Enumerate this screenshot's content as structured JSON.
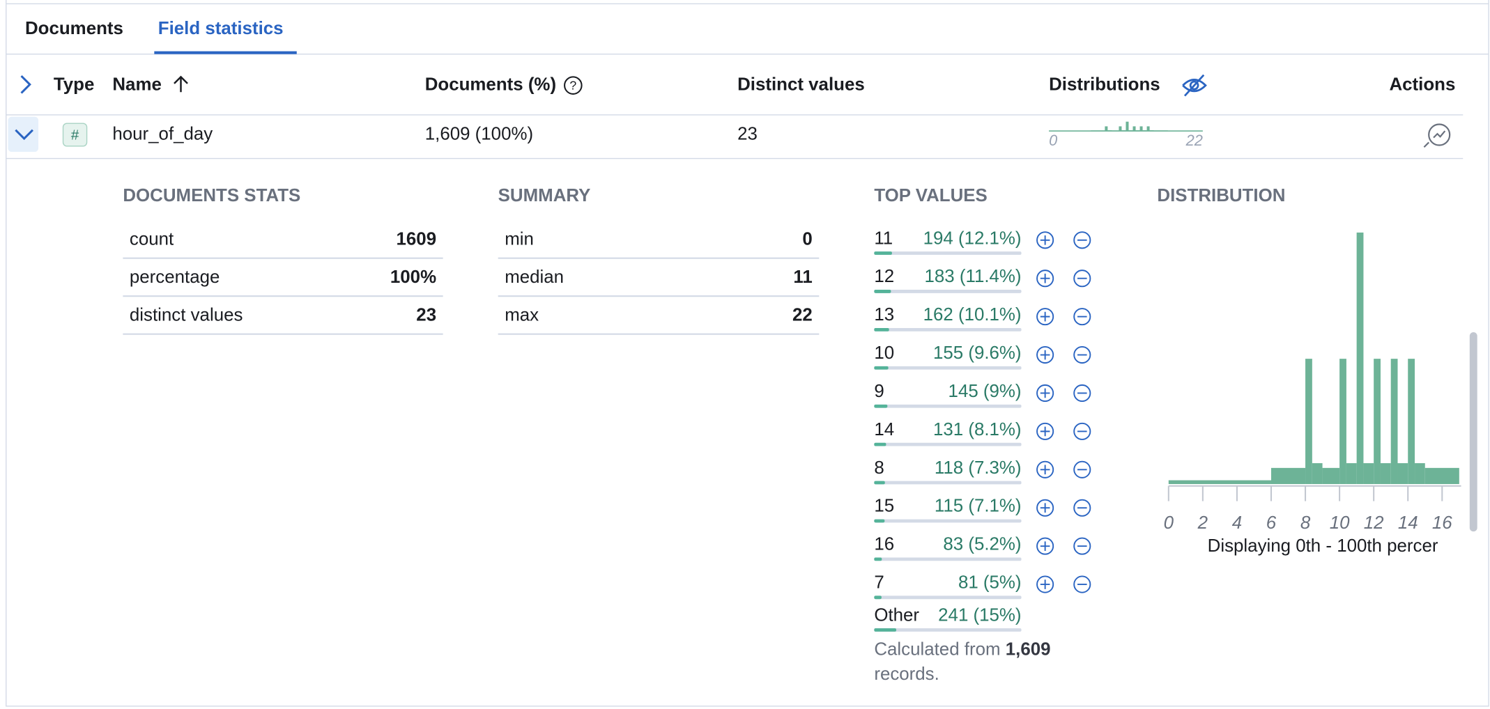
{
  "tabs": [
    "Documents",
    "Field statistics"
  ],
  "table": {
    "headers": [
      "Type",
      "Name",
      "Documents (%)",
      "Distinct values",
      "Distributions",
      "Actions"
    ],
    "row": {
      "type_icon": "#",
      "name": "hour_of_day",
      "documents": "1,609 (100%)",
      "distinct_values": "23",
      "dist_min": "0",
      "dist_max": "22"
    }
  },
  "documents_stats": {
    "title": "DOCUMENTS STATS",
    "rows": [
      [
        "count",
        "1609"
      ],
      [
        "percentage",
        "100%"
      ],
      [
        "distinct values",
        "23"
      ]
    ]
  },
  "summary": {
    "title": "SUMMARY",
    "rows": [
      [
        "min",
        "0"
      ],
      [
        "median",
        "11"
      ],
      [
        "max",
        "22"
      ]
    ]
  },
  "top_values": {
    "title": "TOP VALUES",
    "rows": [
      {
        "value": "11",
        "count": "194 (12.1%)",
        "percent": 12.1
      },
      {
        "value": "12",
        "count": "183 (11.4%)",
        "percent": 11.4
      },
      {
        "value": "13",
        "count": "162 (10.1%)",
        "percent": 10.1
      },
      {
        "value": "10",
        "count": "155 (9.6%)",
        "percent": 9.6
      },
      {
        "value": "9",
        "count": "145 (9%)",
        "percent": 9
      },
      {
        "value": "14",
        "count": "131 (8.1%)",
        "percent": 8.1
      },
      {
        "value": "8",
        "count": "118 (7.3%)",
        "percent": 7.3
      },
      {
        "value": "15",
        "count": "115 (7.1%)",
        "percent": 7.1
      },
      {
        "value": "16",
        "count": "83 (5.2%)",
        "percent": 5.2
      },
      {
        "value": "7",
        "count": "81 (5%)",
        "percent": 5
      }
    ],
    "other": {
      "label": "Other",
      "count": "241 (15%)",
      "percent": 15
    },
    "note_prefix": "Calculated from",
    "note_count": "1,609",
    "note_suffix": "records."
  },
  "distribution": {
    "title": "DISTRIBUTION",
    "type": "histogram",
    "bins": [
      0,
      6,
      8,
      8.4,
      9,
      10,
      10.4,
      11,
      11.4,
      12,
      12.4,
      13,
      13.4,
      14,
      14.4,
      15,
      17
    ],
    "values": [
      4,
      17,
      132,
      22,
      17,
      132,
      22,
      265,
      22,
      132,
      22,
      132,
      22,
      132,
      22,
      17
    ],
    "ylim": [
      0,
      270
    ],
    "xticks": [
      0,
      2,
      4,
      6,
      8,
      10,
      12,
      14,
      16
    ],
    "caption": "Displaying 0th - 100th percer",
    "color": "#6db397",
    "mini_xlim": [
      0,
      22
    ]
  }
}
